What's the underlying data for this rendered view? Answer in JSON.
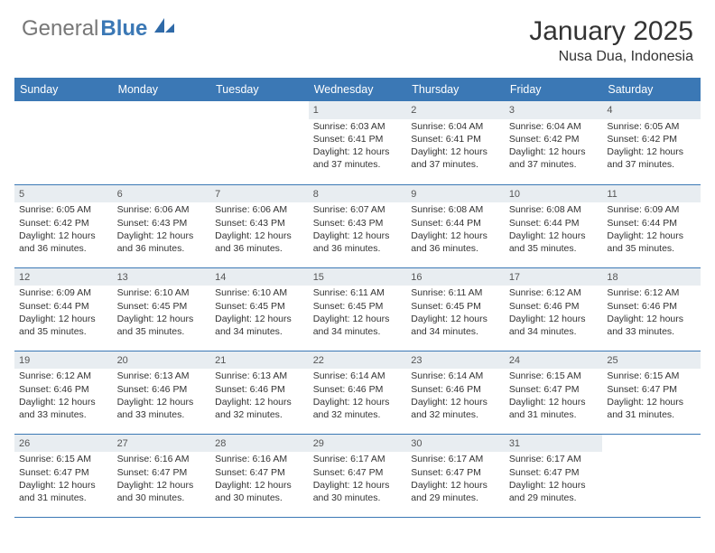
{
  "brand": {
    "part1": "General",
    "part2": "Blue",
    "accent": "#3b78b5"
  },
  "title": {
    "month": "January 2025",
    "location": "Nusa Dua, Indonesia"
  },
  "colors": {
    "header_row": "#3b78b5",
    "daynum_bg": "#e8edf1",
    "cell_border": "#3b78b5",
    "text": "#333333"
  },
  "weekdays": [
    "Sunday",
    "Monday",
    "Tuesday",
    "Wednesday",
    "Thursday",
    "Friday",
    "Saturday"
  ],
  "layout": {
    "first_weekday_index": 3,
    "days_in_month": 31
  },
  "days": {
    "1": {
      "sunrise": "6:03 AM",
      "sunset": "6:41 PM",
      "daylight": "12 hours and 37 minutes."
    },
    "2": {
      "sunrise": "6:04 AM",
      "sunset": "6:41 PM",
      "daylight": "12 hours and 37 minutes."
    },
    "3": {
      "sunrise": "6:04 AM",
      "sunset": "6:42 PM",
      "daylight": "12 hours and 37 minutes."
    },
    "4": {
      "sunrise": "6:05 AM",
      "sunset": "6:42 PM",
      "daylight": "12 hours and 37 minutes."
    },
    "5": {
      "sunrise": "6:05 AM",
      "sunset": "6:42 PM",
      "daylight": "12 hours and 36 minutes."
    },
    "6": {
      "sunrise": "6:06 AM",
      "sunset": "6:43 PM",
      "daylight": "12 hours and 36 minutes."
    },
    "7": {
      "sunrise": "6:06 AM",
      "sunset": "6:43 PM",
      "daylight": "12 hours and 36 minutes."
    },
    "8": {
      "sunrise": "6:07 AM",
      "sunset": "6:43 PM",
      "daylight": "12 hours and 36 minutes."
    },
    "9": {
      "sunrise": "6:08 AM",
      "sunset": "6:44 PM",
      "daylight": "12 hours and 36 minutes."
    },
    "10": {
      "sunrise": "6:08 AM",
      "sunset": "6:44 PM",
      "daylight": "12 hours and 35 minutes."
    },
    "11": {
      "sunrise": "6:09 AM",
      "sunset": "6:44 PM",
      "daylight": "12 hours and 35 minutes."
    },
    "12": {
      "sunrise": "6:09 AM",
      "sunset": "6:44 PM",
      "daylight": "12 hours and 35 minutes."
    },
    "13": {
      "sunrise": "6:10 AM",
      "sunset": "6:45 PM",
      "daylight": "12 hours and 35 minutes."
    },
    "14": {
      "sunrise": "6:10 AM",
      "sunset": "6:45 PM",
      "daylight": "12 hours and 34 minutes."
    },
    "15": {
      "sunrise": "6:11 AM",
      "sunset": "6:45 PM",
      "daylight": "12 hours and 34 minutes."
    },
    "16": {
      "sunrise": "6:11 AM",
      "sunset": "6:45 PM",
      "daylight": "12 hours and 34 minutes."
    },
    "17": {
      "sunrise": "6:12 AM",
      "sunset": "6:46 PM",
      "daylight": "12 hours and 34 minutes."
    },
    "18": {
      "sunrise": "6:12 AM",
      "sunset": "6:46 PM",
      "daylight": "12 hours and 33 minutes."
    },
    "19": {
      "sunrise": "6:12 AM",
      "sunset": "6:46 PM",
      "daylight": "12 hours and 33 minutes."
    },
    "20": {
      "sunrise": "6:13 AM",
      "sunset": "6:46 PM",
      "daylight": "12 hours and 33 minutes."
    },
    "21": {
      "sunrise": "6:13 AM",
      "sunset": "6:46 PM",
      "daylight": "12 hours and 32 minutes."
    },
    "22": {
      "sunrise": "6:14 AM",
      "sunset": "6:46 PM",
      "daylight": "12 hours and 32 minutes."
    },
    "23": {
      "sunrise": "6:14 AM",
      "sunset": "6:46 PM",
      "daylight": "12 hours and 32 minutes."
    },
    "24": {
      "sunrise": "6:15 AM",
      "sunset": "6:47 PM",
      "daylight": "12 hours and 31 minutes."
    },
    "25": {
      "sunrise": "6:15 AM",
      "sunset": "6:47 PM",
      "daylight": "12 hours and 31 minutes."
    },
    "26": {
      "sunrise": "6:15 AM",
      "sunset": "6:47 PM",
      "daylight": "12 hours and 31 minutes."
    },
    "27": {
      "sunrise": "6:16 AM",
      "sunset": "6:47 PM",
      "daylight": "12 hours and 30 minutes."
    },
    "28": {
      "sunrise": "6:16 AM",
      "sunset": "6:47 PM",
      "daylight": "12 hours and 30 minutes."
    },
    "29": {
      "sunrise": "6:17 AM",
      "sunset": "6:47 PM",
      "daylight": "12 hours and 30 minutes."
    },
    "30": {
      "sunrise": "6:17 AM",
      "sunset": "6:47 PM",
      "daylight": "12 hours and 29 minutes."
    },
    "31": {
      "sunrise": "6:17 AM",
      "sunset": "6:47 PM",
      "daylight": "12 hours and 29 minutes."
    }
  },
  "labels": {
    "sunrise": "Sunrise:",
    "sunset": "Sunset:",
    "daylight": "Daylight:"
  }
}
